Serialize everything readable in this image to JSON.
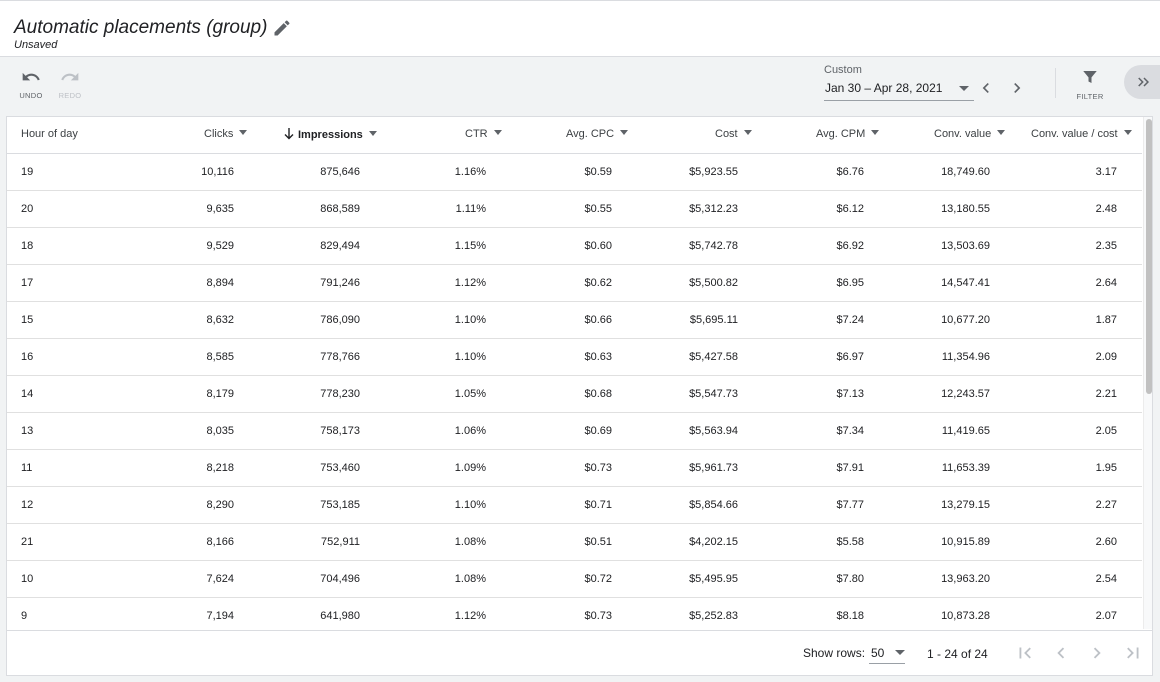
{
  "header": {
    "title": "Automatic placements (group)",
    "subtitle": "Unsaved"
  },
  "toolbar": {
    "undo_label": "UNDO",
    "redo_label": "REDO",
    "date_label": "Custom",
    "date_range": "Jan 30 – Apr 28, 2021",
    "filter_label": "FILTER"
  },
  "table": {
    "columns": [
      "Hour of day",
      "Clicks",
      "Impressions",
      "CTR",
      "Avg. CPC",
      "Cost",
      "Avg. CPM",
      "Conv. value",
      "Conv. value / cost"
    ],
    "sorted_column": "Impressions",
    "rows": [
      [
        "19",
        "10,116",
        "875,646",
        "1.16%",
        "$0.59",
        "$5,923.55",
        "$6.76",
        "18,749.60",
        "3.17"
      ],
      [
        "20",
        "9,635",
        "868,589",
        "1.11%",
        "$0.55",
        "$5,312.23",
        "$6.12",
        "13,180.55",
        "2.48"
      ],
      [
        "18",
        "9,529",
        "829,494",
        "1.15%",
        "$0.60",
        "$5,742.78",
        "$6.92",
        "13,503.69",
        "2.35"
      ],
      [
        "17",
        "8,894",
        "791,246",
        "1.12%",
        "$0.62",
        "$5,500.82",
        "$6.95",
        "14,547.41",
        "2.64"
      ],
      [
        "15",
        "8,632",
        "786,090",
        "1.10%",
        "$0.66",
        "$5,695.11",
        "$7.24",
        "10,677.20",
        "1.87"
      ],
      [
        "16",
        "8,585",
        "778,766",
        "1.10%",
        "$0.63",
        "$5,427.58",
        "$6.97",
        "11,354.96",
        "2.09"
      ],
      [
        "14",
        "8,179",
        "778,230",
        "1.05%",
        "$0.68",
        "$5,547.73",
        "$7.13",
        "12,243.57",
        "2.21"
      ],
      [
        "13",
        "8,035",
        "758,173",
        "1.06%",
        "$0.69",
        "$5,563.94",
        "$7.34",
        "11,419.65",
        "2.05"
      ],
      [
        "11",
        "8,218",
        "753,460",
        "1.09%",
        "$0.73",
        "$5,961.73",
        "$7.91",
        "11,653.39",
        "1.95"
      ],
      [
        "12",
        "8,290",
        "753,185",
        "1.10%",
        "$0.71",
        "$5,854.66",
        "$7.77",
        "13,279.15",
        "2.27"
      ],
      [
        "21",
        "8,166",
        "752,911",
        "1.08%",
        "$0.51",
        "$4,202.15",
        "$5.58",
        "10,915.89",
        "2.60"
      ],
      [
        "10",
        "7,624",
        "704,496",
        "1.08%",
        "$0.72",
        "$5,495.95",
        "$7.80",
        "13,963.20",
        "2.54"
      ],
      [
        "9",
        "7,194",
        "641,980",
        "1.12%",
        "$0.73",
        "$5,252.83",
        "$8.18",
        "10,873.28",
        "2.07"
      ]
    ]
  },
  "footer": {
    "show_rows_label": "Show rows:",
    "rows_value": "50",
    "range_text": "1 - 24 of 24"
  }
}
